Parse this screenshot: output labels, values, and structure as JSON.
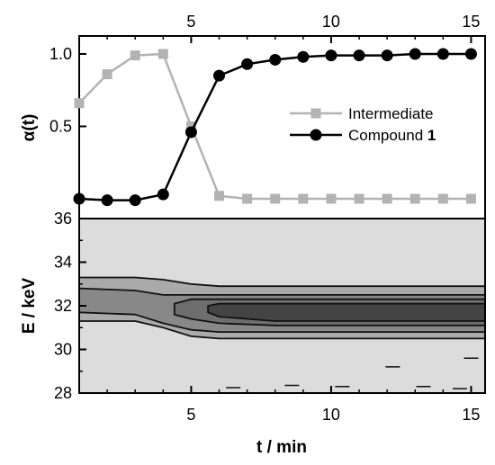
{
  "chart_data": [
    {
      "type": "line",
      "panel": "top",
      "xlim": [
        1,
        15.5
      ],
      "ylabel": "α(t)",
      "x_ticks_top": [
        "5",
        "10",
        "15"
      ],
      "y_ticks": [
        "1.0",
        "0.5"
      ],
      "grid": false,
      "legend_position": "right",
      "series": [
        {
          "name": "Intermediate",
          "color": "#b3b3b3",
          "marker": "square",
          "x": [
            1,
            2,
            3,
            4,
            5,
            6,
            7,
            8,
            9,
            10,
            11,
            12,
            13,
            14,
            15
          ],
          "y": [
            0.66,
            0.86,
            0.99,
            1.0,
            0.5,
            0.02,
            0.0,
            0.0,
            0.0,
            0.0,
            0.0,
            0.0,
            0.0,
            0.0,
            0.0
          ]
        },
        {
          "name": "Compound 1",
          "name_prefix": "Compound ",
          "name_bold": "1",
          "color": "#000000",
          "marker": "circle",
          "x": [
            1,
            2,
            3,
            4,
            5,
            6,
            7,
            8,
            9,
            10,
            11,
            12,
            13,
            14,
            15
          ],
          "y": [
            0.0,
            -0.01,
            -0.01,
            0.03,
            0.46,
            0.85,
            0.93,
            0.96,
            0.98,
            0.99,
            0.99,
            0.99,
            1.0,
            1.0,
            1.0
          ]
        }
      ]
    },
    {
      "type": "heatmap",
      "panel": "bottom",
      "xlabel": "t / min",
      "ylabel": "E / keV",
      "xlim": [
        1,
        15.5
      ],
      "ylim": [
        28,
        36
      ],
      "x_ticks": [
        "5",
        "10",
        "15"
      ],
      "y_ticks": [
        "28",
        "30",
        "32",
        "34",
        "36"
      ],
      "description_levels": [
        {
          "x": [
            1,
            3,
            4,
            5,
            6,
            15.5
          ],
          "y_low": [
            31.3,
            31.3,
            31.0,
            30.6,
            30.5,
            30.5
          ],
          "y_high": [
            33.3,
            33.3,
            33.2,
            33.0,
            32.9,
            32.9
          ],
          "color": "#aaaaaa"
        },
        {
          "x": [
            1,
            3,
            4,
            5,
            6,
            15.5
          ],
          "y_low": [
            31.7,
            31.6,
            31.2,
            30.9,
            30.8,
            30.8
          ],
          "y_high": [
            32.8,
            32.7,
            32.5,
            32.5,
            32.5,
            32.5
          ],
          "color": "#888888"
        },
        {
          "x": [
            4.4,
            5,
            6,
            8,
            15.5
          ],
          "y_low": [
            31.6,
            31.4,
            31.2,
            31.1,
            31.1
          ],
          "y_high": [
            32.1,
            32.3,
            32.3,
            32.3,
            32.3
          ],
          "color": "#6e6e6e"
        },
        {
          "x": [
            5.6,
            6,
            8,
            15.5
          ],
          "y_low": [
            31.7,
            31.5,
            31.3,
            31.3
          ],
          "y_high": [
            32.0,
            32.1,
            32.1,
            32.1
          ],
          "color": "#444444"
        }
      ]
    }
  ]
}
